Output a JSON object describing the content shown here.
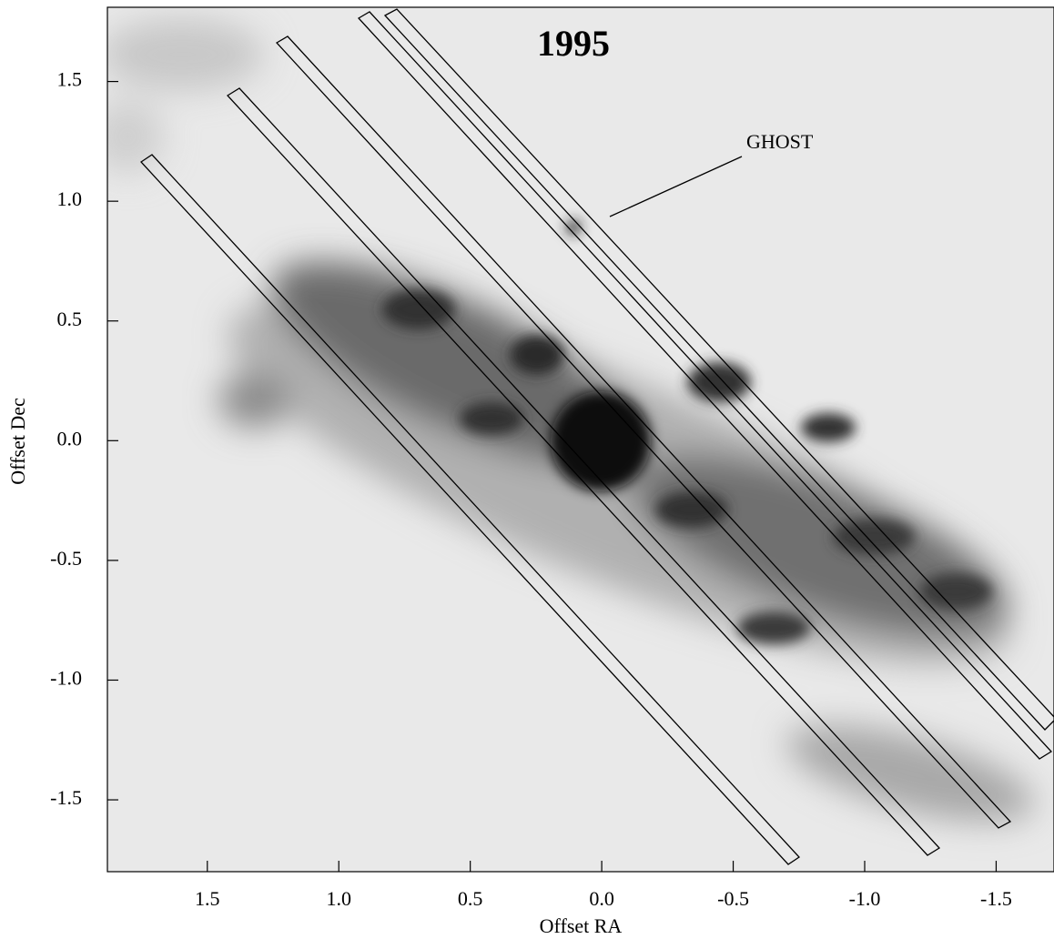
{
  "chart_data": {
    "type": "image",
    "title": "1995",
    "xlabel": "Offset RA",
    "ylabel": "Offset Dec",
    "annotation": "GHOST",
    "xlim": [
      1.88,
      -1.72
    ],
    "ylim": [
      -1.8,
      1.81
    ],
    "xticks": [
      1.5,
      {
        "value": 1,
        "label": "1.0"
      },
      0.5,
      {
        "value": 0,
        "label": "0.0"
      },
      -0.5,
      {
        "value": -1,
        "label": "-1.0"
      },
      -1.5
    ],
    "yticks": [
      1.5,
      {
        "value": 1,
        "label": "1.0"
      },
      0.5,
      {
        "value": 0,
        "label": "0.0"
      },
      -0.5,
      {
        "value": -1,
        "label": "-1.0"
      },
      -1.5
    ]
  }
}
